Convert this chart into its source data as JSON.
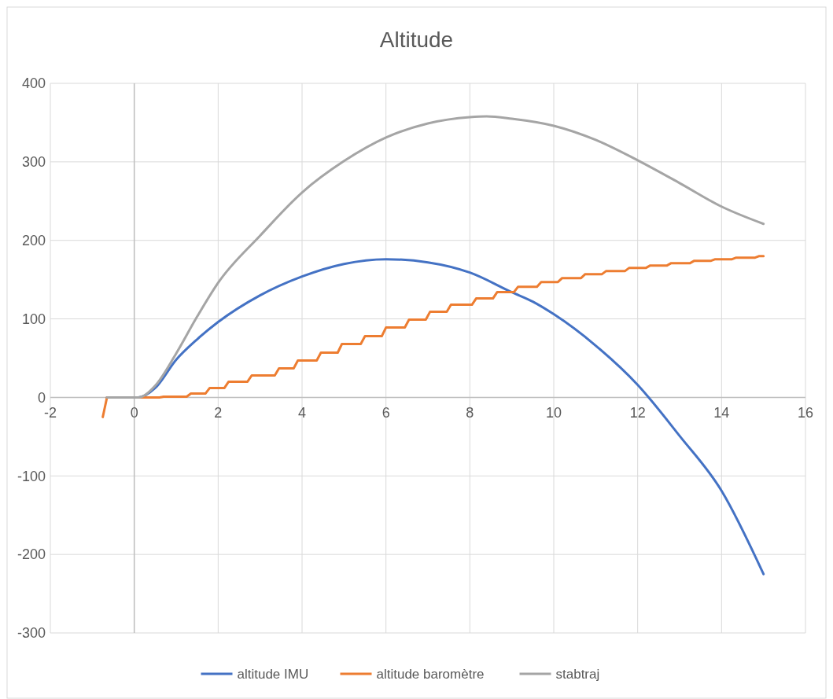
{
  "chart_data": {
    "type": "line",
    "title": "Altitude",
    "xlim": [
      -2,
      16
    ],
    "xticks": [
      -2,
      0,
      2,
      4,
      6,
      8,
      10,
      12,
      14,
      16
    ],
    "ylim": [
      -300,
      400
    ],
    "yticks": [
      -300,
      -200,
      -100,
      0,
      100,
      200,
      300,
      400
    ],
    "grid": true,
    "legend": "bottom",
    "marker": "none",
    "line_style": "solid",
    "series": [
      {
        "name": "altitude IMU",
        "color": "#4472c4",
        "x": [
          -0.65,
          0,
          0.1,
          0.5,
          1,
          1.5,
          2,
          3,
          4,
          5,
          6,
          7,
          8,
          9,
          9.5,
          10,
          11,
          12,
          13,
          14,
          15
        ],
        "values": [
          0,
          0,
          0,
          12,
          48,
          74,
          96,
          130,
          154,
          170,
          176,
          172,
          159,
          134,
          122,
          106,
          66,
          16,
          -49,
          -119,
          -225
        ]
      },
      {
        "name": "altitude baromètre",
        "color": "#ed7d31",
        "x": [
          -0.75,
          -0.65,
          0,
          0.6,
          0.7,
          1.25,
          1.35,
          1.7,
          1.8,
          2.15,
          2.25,
          2.7,
          2.8,
          3.35,
          3.45,
          3.8,
          3.9,
          4.35,
          4.45,
          4.85,
          4.95,
          5.4,
          5.5,
          5.9,
          6.0,
          6.45,
          6.55,
          6.95,
          7.05,
          7.45,
          7.55,
          8.05,
          8.15,
          8.55,
          8.65,
          9.05,
          9.15,
          9.6,
          9.7,
          10.1,
          10.2,
          10.65,
          10.75,
          11.15,
          11.25,
          11.7,
          11.8,
          12.2,
          12.3,
          12.7,
          12.8,
          13.25,
          13.35,
          13.75,
          13.85,
          14.25,
          14.35,
          14.8,
          14.9,
          15
        ],
        "values": [
          -25,
          0,
          0,
          0,
          1,
          1,
          5,
          5,
          12,
          12,
          20,
          20,
          28,
          28,
          37,
          37,
          47,
          47,
          57,
          57,
          68,
          68,
          78,
          78,
          89,
          89,
          99,
          99,
          109,
          109,
          118,
          118,
          126,
          126,
          134,
          134,
          141,
          141,
          147,
          147,
          152,
          152,
          157,
          157,
          161,
          161,
          165,
          165,
          168,
          168,
          171,
          171,
          174,
          174,
          176,
          176,
          178,
          178,
          180,
          180
        ]
      },
      {
        "name": "stabtraj",
        "color": "#a5a5a5",
        "x": [
          -0.65,
          0,
          0.1,
          0.5,
          1,
          1.5,
          2,
          3,
          4,
          5,
          6,
          7,
          8,
          8.4,
          9,
          10,
          11,
          12,
          13,
          14,
          15
        ],
        "values": [
          0,
          0,
          0,
          15,
          56,
          103,
          146,
          206,
          261,
          301,
          331,
          349,
          357,
          358,
          355,
          346,
          328,
          302,
          273,
          243,
          221
        ]
      }
    ]
  }
}
